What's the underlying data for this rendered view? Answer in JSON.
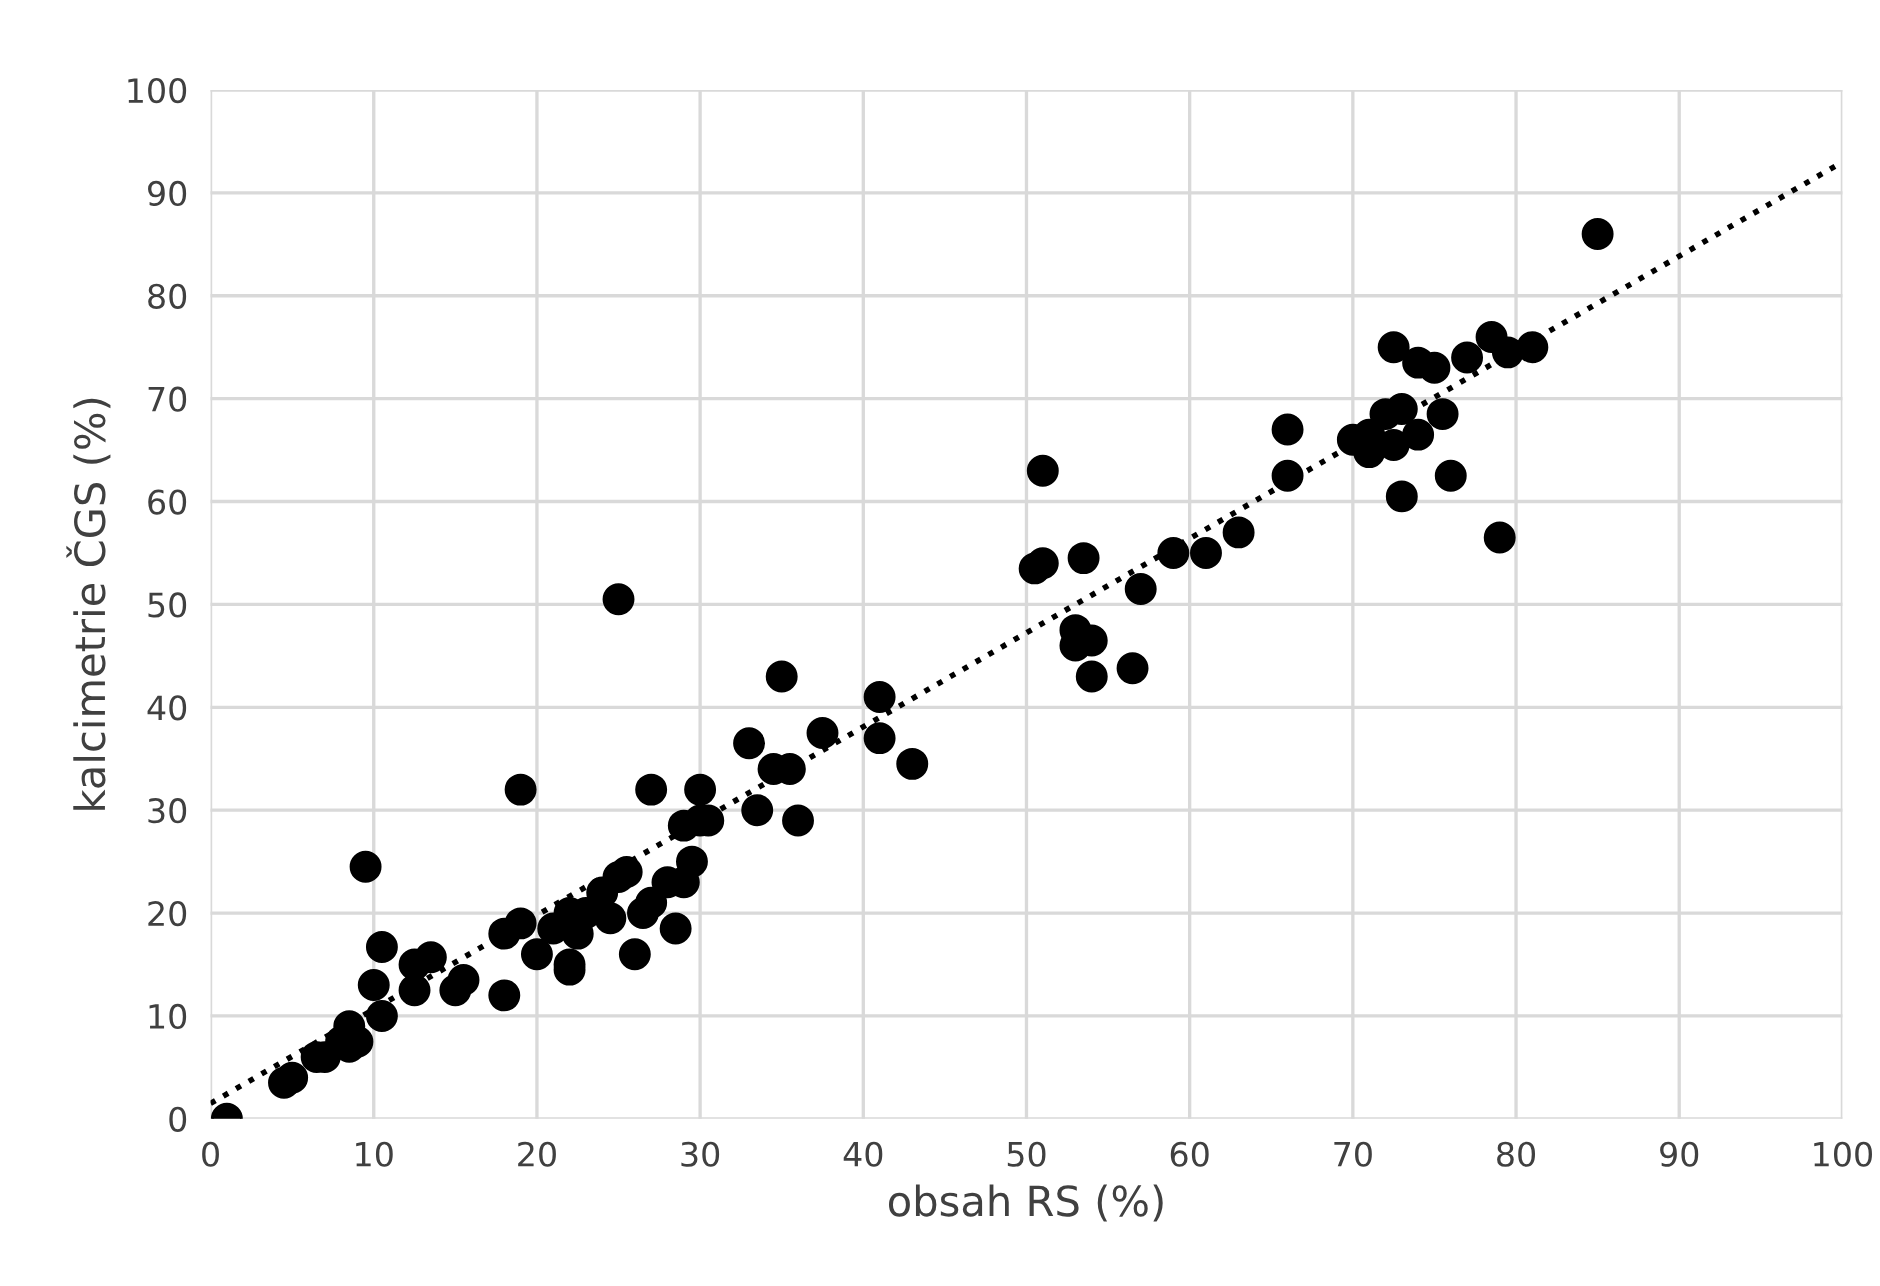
{
  "chart_data": {
    "type": "scatter",
    "xlabel": "obsah RS (%)",
    "ylabel": "kalcimetrie ČGS (%)",
    "xlim": [
      0,
      100
    ],
    "ylim": [
      0,
      100
    ],
    "xticks": [
      0,
      10,
      20,
      30,
      40,
      50,
      60,
      70,
      80,
      90,
      100
    ],
    "yticks": [
      0,
      10,
      20,
      30,
      40,
      50,
      60,
      70,
      80,
      90,
      100
    ],
    "grid": true,
    "legend": false,
    "series": [
      {
        "color": "#000000",
        "marker": "circle",
        "x": [
          1,
          4.5,
          5,
          6.5,
          7,
          8,
          8.5,
          8.5,
          9,
          9.5,
          10,
          10.5,
          10.5,
          12.5,
          12.5,
          13.5,
          15,
          15.5,
          18,
          18,
          19,
          19,
          20,
          21,
          22,
          22,
          22,
          22.5,
          23,
          24,
          24.5,
          25,
          25,
          25.5,
          26,
          26.5,
          27,
          27,
          28,
          28.5,
          29,
          29,
          29.5,
          30,
          30,
          30.5,
          33,
          33.5,
          34.5,
          35,
          35.5,
          36,
          37.5,
          41,
          41,
          43,
          50.5,
          51,
          51,
          53,
          53,
          53.5,
          54,
          54,
          56.5,
          57,
          59,
          61,
          63,
          66,
          66,
          70,
          71,
          71,
          72,
          72.5,
          72.5,
          73,
          73,
          74,
          74,
          75,
          75.5,
          76,
          77,
          78.5,
          79,
          79.5,
          81,
          85
        ],
        "values": [
          0,
          3.5,
          4,
          6,
          6,
          7.5,
          9,
          7,
          7.5,
          24.5,
          13,
          10,
          16.7,
          12.5,
          15,
          15.7,
          12.5,
          13.5,
          18,
          12,
          32,
          19,
          16,
          18.5,
          20,
          15,
          14.5,
          18,
          20,
          22,
          19.5,
          50.5,
          23.5,
          24,
          16,
          20,
          32,
          21,
          23,
          18.5,
          28.5,
          23,
          25,
          29,
          32,
          29,
          36.5,
          30,
          34,
          43,
          34,
          29,
          37.5,
          41,
          37,
          34.5,
          53.5,
          54,
          63,
          47.5,
          46,
          54.5,
          43,
          46.5,
          43.8,
          51.5,
          55,
          55,
          57,
          67,
          62.5,
          66,
          66.5,
          64.8,
          68.5,
          65.5,
          75,
          60.5,
          69,
          66.5,
          73.5,
          73,
          68.5,
          62.5,
          74,
          76,
          56.5,
          74.5,
          75,
          86
        ]
      },
      {
        "type": "line",
        "color": "#000000",
        "line_style": "dotted",
        "marker": "none",
        "x": [
          0,
          100
        ],
        "values": [
          1.5,
          93
        ]
      }
    ]
  }
}
